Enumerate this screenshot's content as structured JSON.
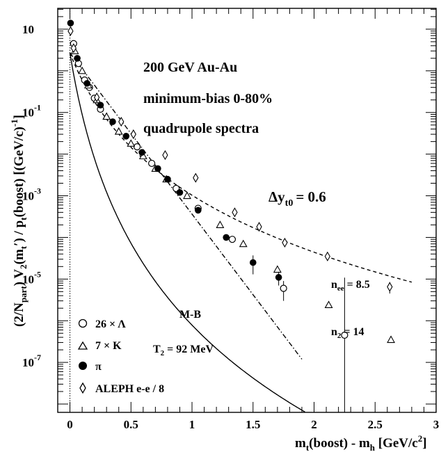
{
  "chart_data": {
    "type": "scatter",
    "title_lines": [
      "200 GeV Au-Au",
      "minimum-bias  0-80%",
      "quadrupole  spectra"
    ],
    "xlabel": "m_t(boost) - m_h [GeV/c^2]",
    "ylabel": "(2/N_part) V_2(m_t') / p_t(boost) [(GeV/c)^-1]",
    "xlim": [
      -0.1,
      3.0
    ],
    "ylim_log10": [
      -8.2,
      1.5
    ],
    "log_y": true,
    "grid": false,
    "x_ticks": [
      "0",
      "0.5",
      "1",
      "1.5",
      "2",
      "2.5",
      "3"
    ],
    "y_ticks": [
      "10",
      "10",
      "10",
      "10",
      "10"
    ],
    "y_tick_exponents": [
      "",
      "-1",
      "-3",
      "-5",
      "-7"
    ],
    "annotations": {
      "dy": "Δy",
      "dy_sub": "t0",
      "dy_val": "= 0.6",
      "nee": "n",
      "nee_sub": "ee",
      "nee_val": "= 8.5",
      "n2": "n",
      "n2_sub": "2",
      "n2_val": "= 14",
      "mb": "M-B",
      "t2": "T",
      "t2_sub": "2",
      "t2_val": "= 92 MeV"
    },
    "legend_position": "bottom-left",
    "series": [
      {
        "name": "26 × Λ",
        "marker": "open-circle",
        "x": [
          0.03,
          0.07,
          0.12,
          0.16,
          0.2,
          0.25,
          0.55,
          0.67,
          0.87,
          1.05,
          1.33,
          1.75,
          2.25
        ],
        "y": [
          4.5,
          1.5,
          0.6,
          0.4,
          0.22,
          0.12,
          0.015,
          0.006,
          0.0015,
          0.0005,
          9e-05,
          6e-06,
          4.5e-07
        ],
        "yerr": [
          0,
          0,
          0,
          0,
          0,
          0,
          0,
          0,
          0,
          0,
          0,
          3e-06,
          1.04e-05
        ]
      },
      {
        "name": "7 × K",
        "marker": "open-triangle",
        "x": [
          0.04,
          0.1,
          0.15,
          0.22,
          0.3,
          0.4,
          0.5,
          0.6,
          0.7,
          0.79,
          0.96,
          1.23,
          1.42,
          1.7,
          2.12,
          2.63
        ],
        "y": [
          3.0,
          1.0,
          0.45,
          0.2,
          0.08,
          0.035,
          0.018,
          0.009,
          0.0045,
          0.0025,
          0.001,
          0.0002,
          7e-05,
          1.7e-05,
          2.4e-06,
          3.5e-07
        ],
        "yerr": [
          0,
          0,
          0,
          0,
          0,
          0,
          0,
          0,
          0,
          0,
          0,
          0,
          0,
          0,
          0,
          0
        ]
      },
      {
        "name": "π",
        "marker": "filled-circle",
        "x": [
          0.005,
          0.06,
          0.14,
          0.25,
          0.35,
          0.46,
          0.59,
          0.72,
          0.8,
          0.9,
          1.05,
          1.28,
          1.5,
          1.71
        ],
        "y": [
          14.0,
          2.0,
          0.5,
          0.15,
          0.06,
          0.027,
          0.011,
          0.0045,
          0.0025,
          0.0012,
          0.00045,
          0.0001,
          2.5e-05,
          1.1e-05
        ],
        "yerr": [
          0,
          0,
          0,
          0,
          0,
          0,
          0,
          0,
          0,
          0,
          0,
          0,
          1.2e-05,
          4e-06
        ]
      },
      {
        "name": "ALEPH e-e / 8",
        "marker": "open-diamond",
        "x": [
          0.005,
          0.03,
          0.22,
          0.42,
          0.52,
          0.78,
          1.03,
          1.35,
          1.55,
          1.76,
          2.11,
          2.62
        ],
        "y": [
          9.0,
          3.5,
          0.23,
          0.06,
          0.03,
          0.0095,
          0.0027,
          0.0004,
          0.00018,
          7.5e-05,
          3.5e-05,
          6.5e-06
        ],
        "yerr": [
          0,
          0,
          0,
          0,
          0,
          0,
          0,
          0,
          0,
          0,
          0,
          2e-06
        ]
      }
    ],
    "curves": [
      {
        "label": "n2 = 14",
        "style": "solid"
      },
      {
        "label": "nee = 8.5",
        "style": "dashed"
      },
      {
        "label": "M-B T2 = 92 MeV",
        "style": "dash-dot"
      }
    ]
  }
}
